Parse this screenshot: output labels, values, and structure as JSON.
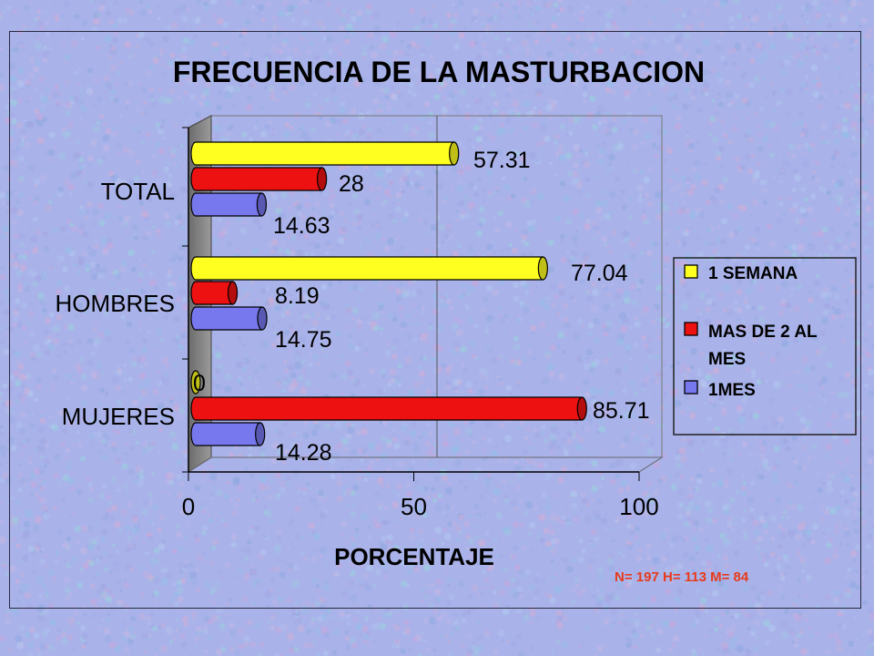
{
  "colors": {
    "background": "#a9b3ea",
    "semana": "#ffff20",
    "mas_de_2": "#ee1111",
    "un_mes": "#7777ee",
    "footnote": "#e83a1a"
  },
  "footnote": "N= 197 H= 113 M= 84",
  "chart_data": {
    "type": "bar",
    "orientation": "horizontal",
    "title": "FRECUENCIA DE LA MASTURBACION",
    "xlabel": "PORCENTAJE",
    "ylabel": "",
    "xlim": [
      0,
      100
    ],
    "xticks": [
      "0",
      "50",
      "100"
    ],
    "categories": [
      "TOTAL",
      "HOMBRES",
      "MUJERES"
    ],
    "series": [
      {
        "name": "1 SEMANA",
        "color": "#ffff20",
        "values": [
          57.31,
          77.04,
          0
        ],
        "labels": [
          "57.31",
          "77.04",
          "0"
        ]
      },
      {
        "name": "MAS DE 2 AL MES",
        "color": "#ee1111",
        "values": [
          28,
          8.19,
          85.71
        ],
        "labels": [
          "28",
          "8.19",
          "85.71"
        ]
      },
      {
        "name": "1MES",
        "color": "#7777ee",
        "values": [
          14.63,
          14.75,
          14.28
        ],
        "labels": [
          "14.63",
          "14.75",
          "14.28"
        ]
      }
    ],
    "legend": {
      "position": "right",
      "items": [
        "1 SEMANA",
        "MAS DE 2 AL",
        "MES",
        "1MES"
      ]
    },
    "grid": true
  }
}
